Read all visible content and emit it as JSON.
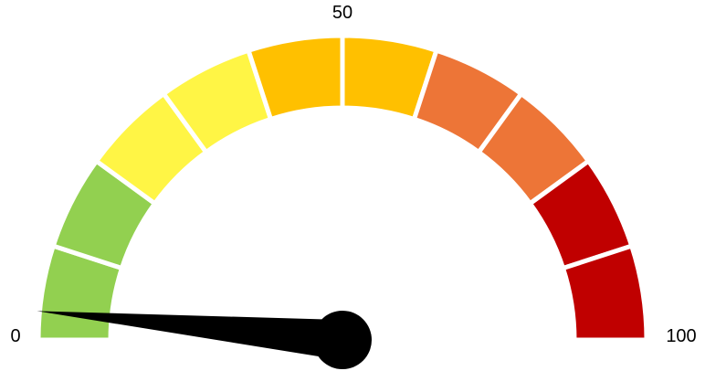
{
  "chart_data": {
    "type": "gauge",
    "min": 0,
    "max": 100,
    "value": 3,
    "segments": [
      {
        "from": 0,
        "to": 10,
        "color": "#92D050"
      },
      {
        "from": 10,
        "to": 20,
        "color": "#92D050"
      },
      {
        "from": 20,
        "to": 30,
        "color": "#FFF545"
      },
      {
        "from": 30,
        "to": 40,
        "color": "#FFF545"
      },
      {
        "from": 40,
        "to": 50,
        "color": "#FFC000"
      },
      {
        "from": 50,
        "to": 60,
        "color": "#FFC000"
      },
      {
        "from": 60,
        "to": 70,
        "color": "#ED7537"
      },
      {
        "from": 70,
        "to": 80,
        "color": "#ED7537"
      },
      {
        "from": 80,
        "to": 90,
        "color": "#C00000"
      },
      {
        "from": 90,
        "to": 100,
        "color": "#C00000"
      }
    ],
    "tick_labels": [
      {
        "value": 0,
        "text": "0"
      },
      {
        "value": 50,
        "text": "50"
      },
      {
        "value": 100,
        "text": "100"
      }
    ],
    "needle_color": "#000000",
    "separator_color": "#FFFFFF"
  }
}
